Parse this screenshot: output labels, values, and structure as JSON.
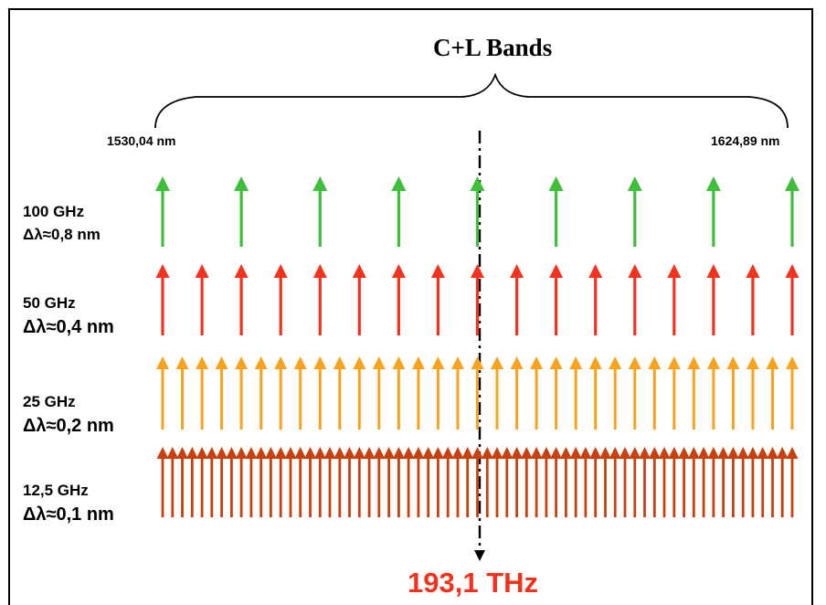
{
  "title": "C+L Bands",
  "band_start": "1530,04 nm",
  "band_end": "1624,89  nm",
  "center_frequency": "193,1 THz",
  "colors": {
    "row_100": "#3dbf3a",
    "row_50": "#f2321d",
    "row_25": "#f8a21e",
    "row_12_5": "#c9400f",
    "center_frequency_text": "#f2321d"
  },
  "rows": [
    {
      "spacing": "100 GHz",
      "delta": "Δλ≈0,8 nm"
    },
    {
      "spacing": "50 GHz",
      "delta": "Δλ≈0,4 nm"
    },
    {
      "spacing": "25 GHz",
      "delta": "Δλ≈0,2 nm"
    },
    {
      "spacing": "12,5 GHz",
      "delta": "Δλ≈0,1 nm"
    }
  ]
}
